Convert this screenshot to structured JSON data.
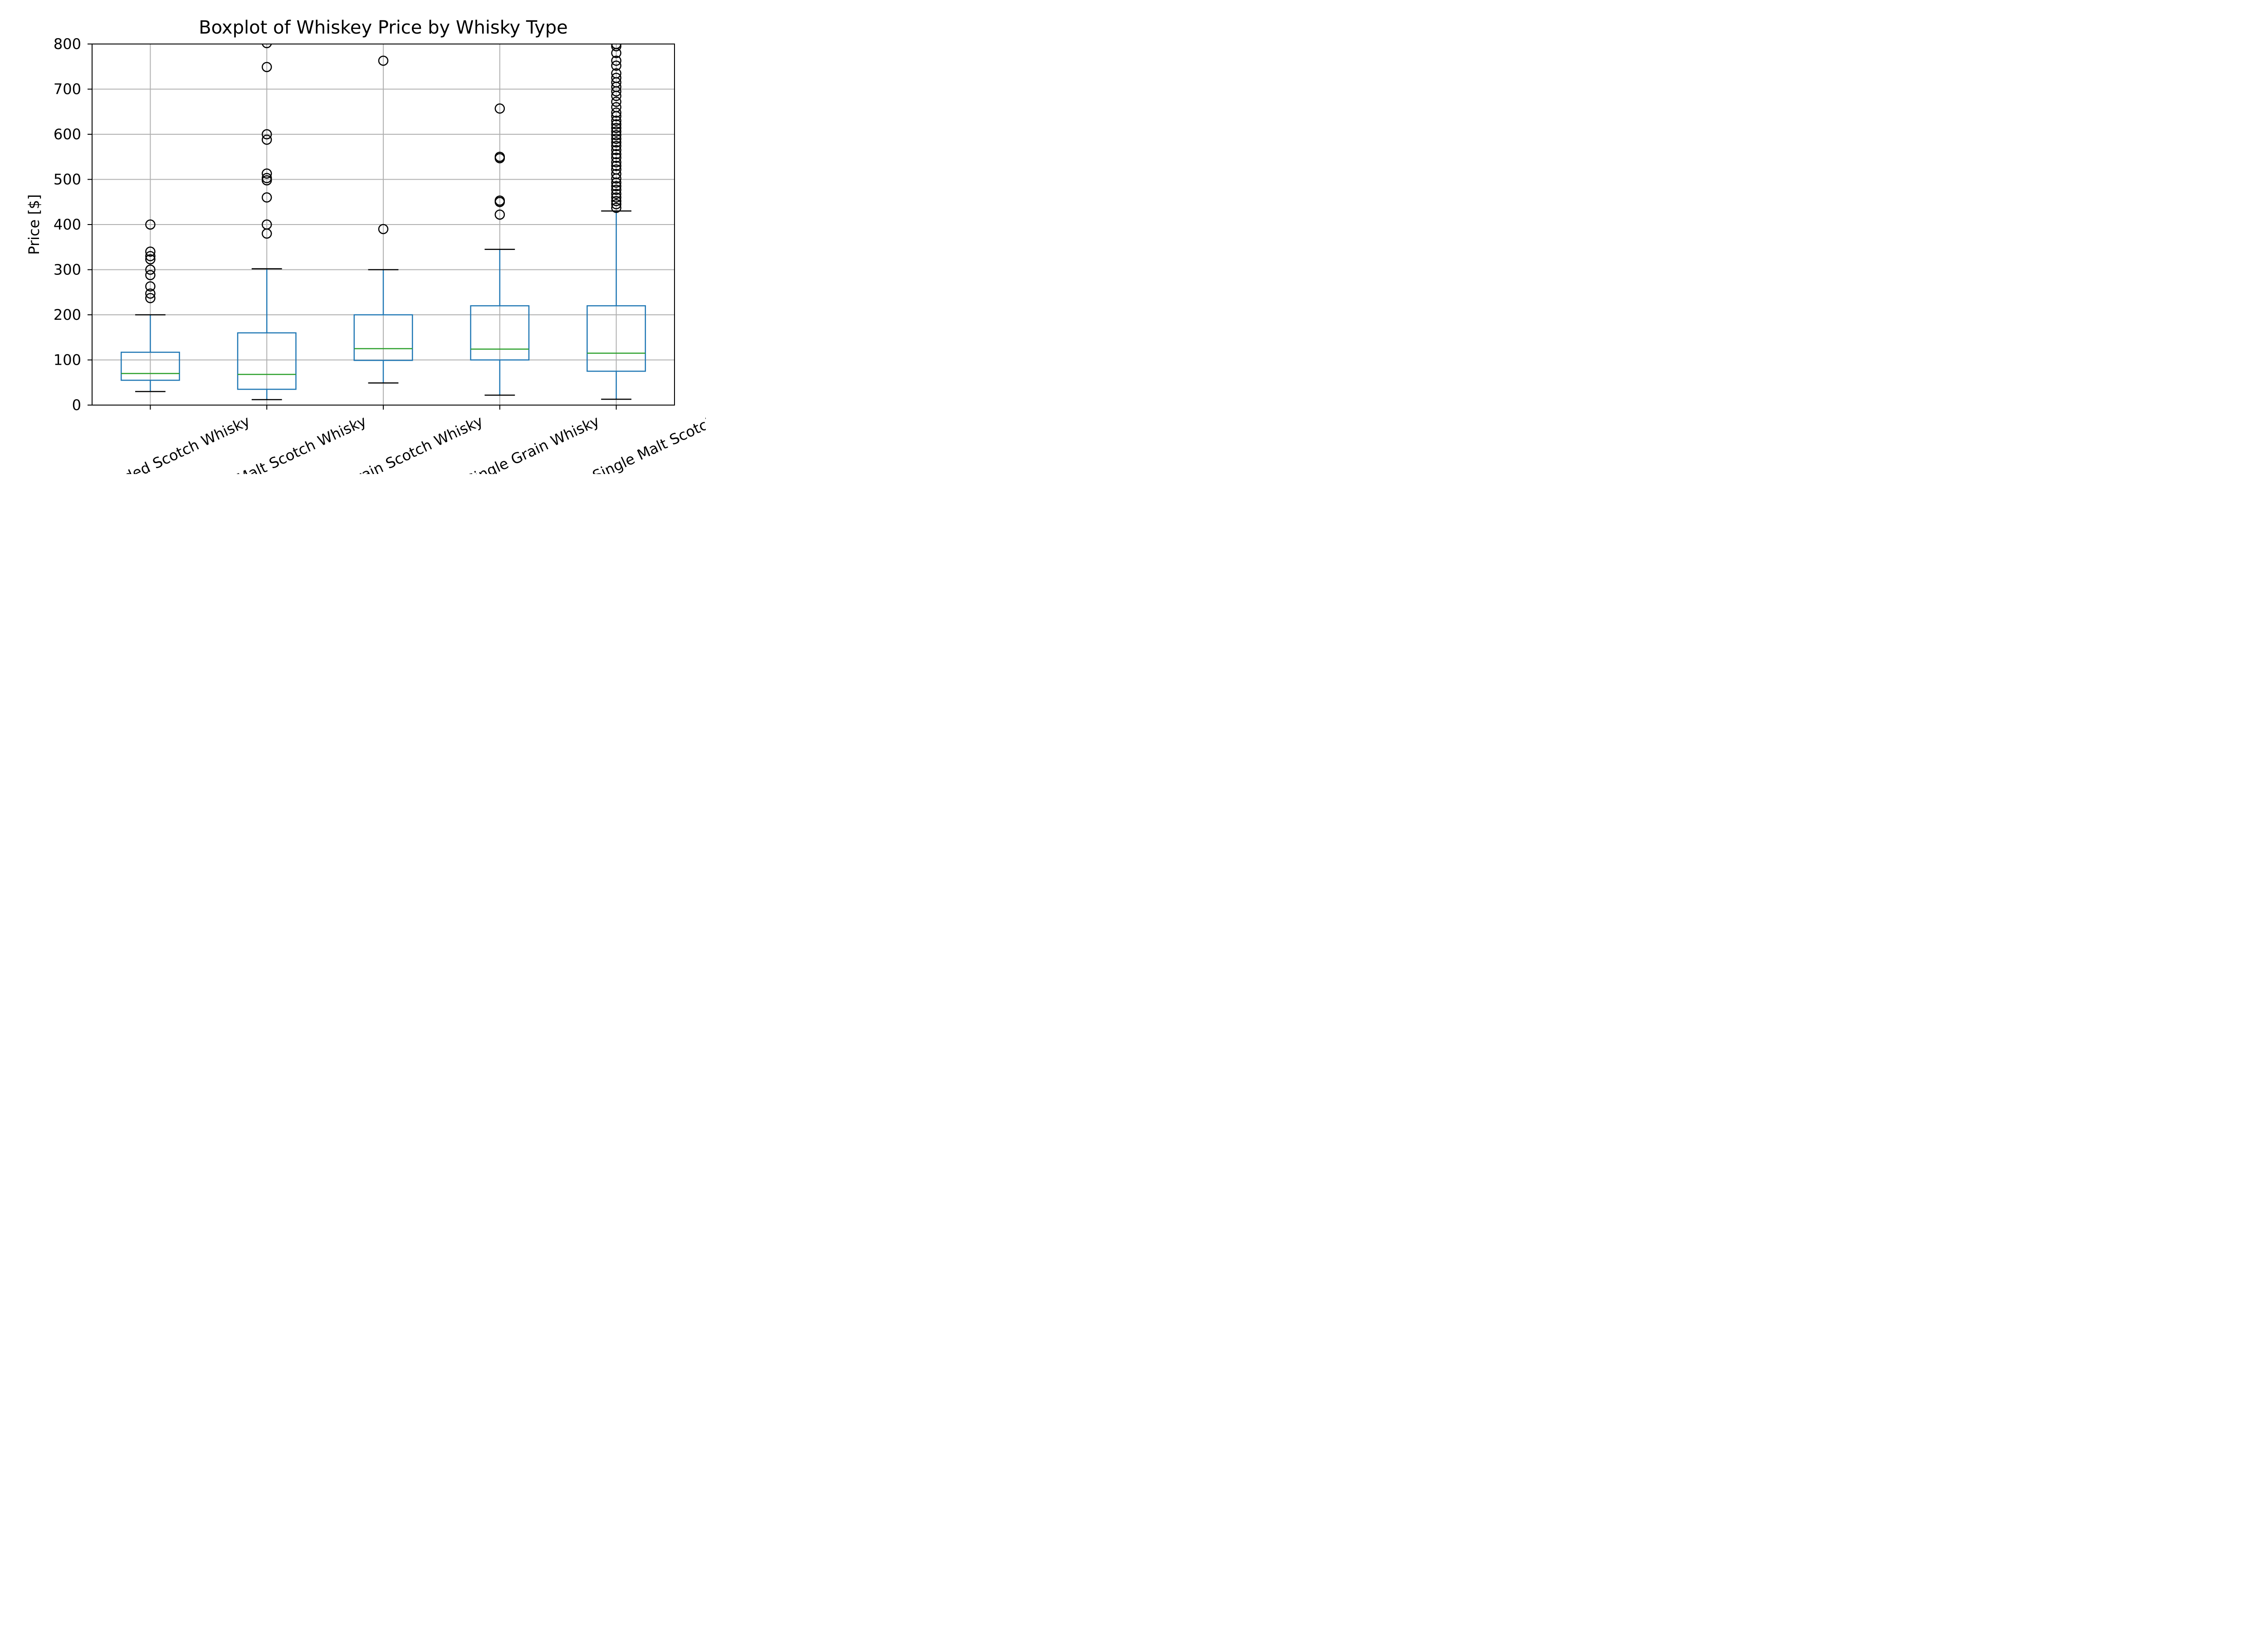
{
  "chart_data": {
    "type": "boxplot",
    "title": "Boxplot of Whiskey Price by Whisky Type",
    "xlabel": "",
    "ylabel": "Price [$]",
    "ylim": [
      0,
      800
    ],
    "yticks": [
      0,
      100,
      200,
      300,
      400,
      500,
      600,
      700,
      800
    ],
    "ytick_labels": [
      "0",
      "100",
      "200",
      "300",
      "400",
      "500",
      "600",
      "700",
      "800"
    ],
    "grid": true,
    "categories": [
      "Blended Scotch Whisky",
      "Blended Malt Scotch Whisky",
      "Single Grain Scotch Whisky",
      "Single Grain Whisky",
      "Single Malt Scotch"
    ],
    "boxes": [
      {
        "whisker_low": 30,
        "q1": 55,
        "median": 70,
        "q3": 117,
        "whisker_high": 200,
        "outliers": [
          237,
          247,
          263,
          288,
          300,
          323,
          330,
          340,
          400
        ]
      },
      {
        "whisker_low": 12,
        "q1": 35,
        "median": 68,
        "q3": 160,
        "whisker_high": 302,
        "outliers": [
          380,
          400,
          460,
          498,
          503,
          513,
          588,
          600,
          749,
          802
        ]
      },
      {
        "whisker_low": 49,
        "q1": 99,
        "median": 125,
        "q3": 200,
        "whisker_high": 300,
        "outliers": [
          390,
          763
        ]
      },
      {
        "whisker_low": 22,
        "q1": 100,
        "median": 124,
        "q3": 220,
        "whisker_high": 345,
        "outliers": [
          422,
          450,
          453,
          547,
          550,
          657
        ]
      },
      {
        "whisker_low": 13,
        "q1": 75,
        "median": 115,
        "q3": 220,
        "whisker_high": 430,
        "outliers": [
          437,
          445,
          452,
          460,
          468,
          477,
          485,
          493,
          502,
          512,
          522,
          530,
          538,
          548,
          556,
          565,
          574,
          582,
          590,
          598,
          606,
          614,
          622,
          630,
          640,
          648,
          660,
          672,
          685,
          695,
          705,
          715,
          725,
          735,
          752,
          763,
          780,
          795,
          800
        ]
      }
    ],
    "colors": {
      "box": "#1f77b4",
      "median": "#2ca02c",
      "whisker_cap": "#000000",
      "outlier": "#000000",
      "grid": "#b0b0b0"
    }
  }
}
